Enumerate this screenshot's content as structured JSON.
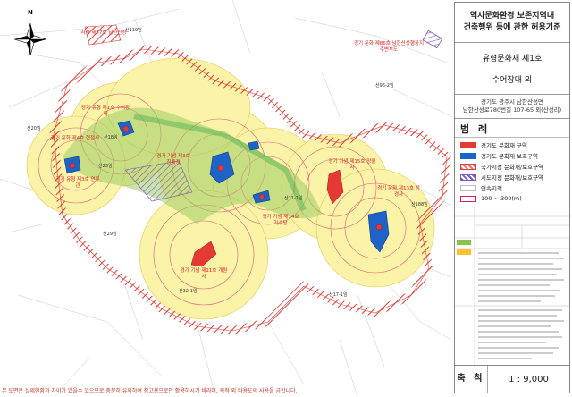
{
  "header": {
    "line1": "역사문화환경 보존지역내",
    "line2": "건축행위 등에 관한 허용기준"
  },
  "heritage": {
    "designation": "유형문화재 제1호",
    "name": "수어장대 외"
  },
  "location": {
    "line1": "경기도 광주시 남한산성면",
    "line2": "남한산성로780번길 107-65 외(산성리)"
  },
  "legend": {
    "title": "범 례",
    "items": [
      {
        "label": "경기도 문화재 구역",
        "color": "#e53935"
      },
      {
        "label": "경기도 문화재 보호구역",
        "color": "#1e63c7"
      },
      {
        "label": "국가지정 문화재/보호구역",
        "color": "#e57373"
      },
      {
        "label": "시도지정 문화재/보호구역",
        "color": "#7e57c2"
      },
      {
        "label": "연속지적",
        "color": "#bdbdbd"
      },
      {
        "label": "100 ~ 300(m)",
        "color": "#d81b60"
      }
    ]
  },
  "scale": {
    "label": "축 척",
    "value": "1 : 9,000"
  },
  "footer": "본 도면은 실제현황과 차이가 있을수 있으므로 충분히 유의하여 참고용으로만 활용하시기 바라며, 목적 외 타용도의 사용을 금합니다.",
  "map_labels": [
    {
      "text": "사적 제57호 남한산성",
      "color": "#d22"
    },
    {
      "text": "경기 문화 제86호 남한산성행궁지주변부도",
      "color": "#d22"
    },
    {
      "text": "경기 유형 제1호 수어장대",
      "color": "#d22"
    },
    {
      "text": "경기 문화 제4호 현절사",
      "color": "#d22"
    },
    {
      "text": "경기 유형 제3호 연무관",
      "color": "#d22"
    },
    {
      "text": "경기 기념 제3호 침괘정",
      "color": "#d22"
    },
    {
      "text": "경기 기념 제14호 지수당",
      "color": "#d22"
    },
    {
      "text": "경기 기념 제11호 개원사",
      "color": "#d22"
    },
    {
      "text": "경기 기념 제15호 망월사",
      "color": "#d22"
    },
    {
      "text": "경기 문화 제13호 장경사",
      "color": "#d22"
    }
  ],
  "parcel_labels": [
    "산119임",
    "산20임",
    "산23임",
    "산29임",
    "산32-1임",
    "산11-1임",
    "산188임",
    "산17-1임",
    "산96-2임",
    "산18임"
  ],
  "compass": {
    "north": "N"
  }
}
